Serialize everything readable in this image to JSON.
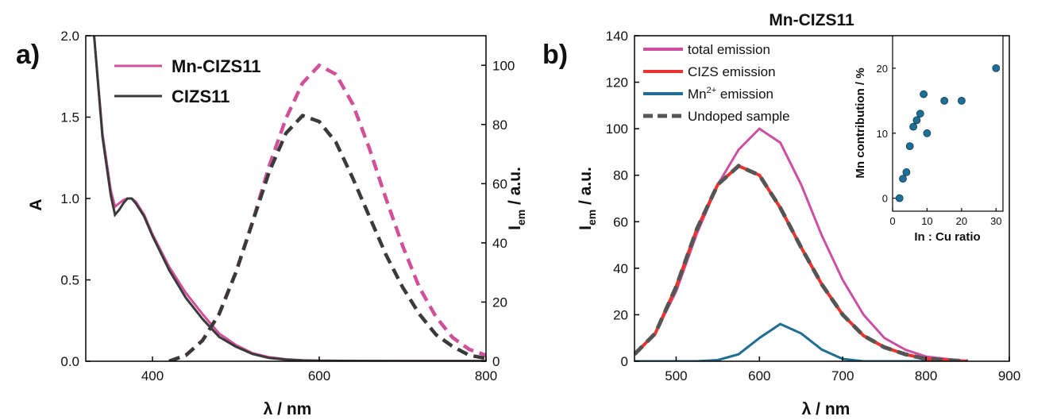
{
  "chart_data": [
    {
      "panel": "a)",
      "type": "line",
      "xlabel": "λ / nm",
      "ylabel": "A",
      "y2label_main": "I",
      "y2label_sub": "em",
      "y2label_rest": " / a.u.",
      "xlim": [
        320,
        800
      ],
      "ylim": [
        0,
        2.0
      ],
      "y2lim": [
        0,
        110
      ],
      "x_ticks": [
        400,
        600,
        800
      ],
      "y_ticks": [
        "0.0",
        "0.5",
        "1.0",
        "1.5",
        "2.0"
      ],
      "y2_ticks": [
        0,
        20,
        40,
        60,
        80,
        100
      ],
      "legend": [
        {
          "label": "Mn-CIZS11",
          "color": "#d0509a"
        },
        {
          "label": "CIZS11",
          "color": "#3a3a3a"
        }
      ],
      "absorption_series": [
        {
          "name": "Mn-CIZS11",
          "color": "#d0509a",
          "x": [
            330,
            340,
            350,
            355,
            360,
            365,
            370,
            375,
            380,
            390,
            400,
            420,
            440,
            460,
            480,
            500,
            520,
            540,
            560,
            580,
            600,
            650,
            700,
            750,
            800
          ],
          "y": [
            2.0,
            1.4,
            1.05,
            0.95,
            0.97,
            0.99,
            1.0,
            1.0,
            0.98,
            0.9,
            0.78,
            0.58,
            0.42,
            0.29,
            0.17,
            0.1,
            0.05,
            0.025,
            0.012,
            0.006,
            0.004,
            0.002,
            0.001,
            0.001,
            0.001
          ]
        },
        {
          "name": "CIZS11",
          "color": "#3a3a3a",
          "x": [
            330,
            340,
            350,
            355,
            360,
            365,
            370,
            375,
            380,
            390,
            400,
            420,
            440,
            460,
            480,
            500,
            520,
            540,
            560,
            580,
            600,
            650,
            700,
            750,
            800
          ],
          "y": [
            2.0,
            1.38,
            1.02,
            0.9,
            0.93,
            0.97,
            1.0,
            1.0,
            0.97,
            0.89,
            0.77,
            0.56,
            0.39,
            0.26,
            0.15,
            0.09,
            0.045,
            0.02,
            0.01,
            0.005,
            0.003,
            0.002,
            0.001,
            0.001,
            0.001
          ]
        }
      ],
      "emission_series": [
        {
          "name": "Mn-CIZS11",
          "color": "#d0509a",
          "x": [
            420,
            440,
            460,
            480,
            500,
            520,
            540,
            560,
            580,
            600,
            620,
            640,
            660,
            680,
            700,
            720,
            740,
            760,
            780,
            800
          ],
          "y": [
            0,
            2,
            7,
            16,
            30,
            47,
            66,
            82,
            94,
            100,
            97,
            87,
            72,
            55,
            39,
            25,
            15,
            8,
            4,
            2
          ]
        },
        {
          "name": "CIZS11",
          "color": "#3a3a3a",
          "x": [
            420,
            440,
            460,
            480,
            500,
            520,
            540,
            560,
            580,
            600,
            620,
            640,
            660,
            680,
            700,
            720,
            740,
            760,
            780,
            800
          ],
          "y": [
            0,
            2,
            7,
            16,
            30,
            47,
            64,
            77,
            83,
            81,
            74,
            62,
            49,
            36,
            25,
            16,
            9,
            5,
            2,
            1
          ]
        }
      ]
    },
    {
      "panel": "b)",
      "type": "line",
      "title": "Mn-CIZS11",
      "xlabel": "λ / nm",
      "ylabel_main": "I",
      "ylabel_sub": "em",
      "ylabel_rest": " / a.u.",
      "xlim": [
        450,
        900
      ],
      "ylim": [
        0,
        140
      ],
      "x_ticks": [
        500,
        600,
        700,
        800,
        900
      ],
      "y_ticks": [
        0,
        20,
        40,
        60,
        80,
        100,
        120,
        140
      ],
      "legend": [
        {
          "label": "total emission",
          "color": "#cc4fa2",
          "dash": false
        },
        {
          "label": "CIZS emission",
          "color": "#e8352f",
          "dash": false
        },
        {
          "label_main": "Mn",
          "label_sup": "2+",
          "label_rest": " emission",
          "color": "#1f6f94",
          "dash": false
        },
        {
          "label": "Undoped sample",
          "color": "#555555",
          "dash": true
        }
      ],
      "series": [
        {
          "name": "total emission",
          "color": "#cc4fa2",
          "dash": false,
          "x": [
            450,
            475,
            500,
            525,
            550,
            575,
            600,
            625,
            650,
            675,
            700,
            725,
            750,
            775,
            800,
            825,
            850
          ],
          "y": [
            3,
            12,
            30,
            55,
            76,
            91,
            100,
            94,
            76,
            54,
            35,
            20,
            10,
            5,
            2,
            1,
            0
          ]
        },
        {
          "name": "CIZS emission",
          "color": "#e8352f",
          "dash": false,
          "x": [
            450,
            475,
            500,
            525,
            550,
            575,
            600,
            625,
            650,
            675,
            700,
            725,
            750,
            775,
            800,
            825,
            850
          ],
          "y": [
            3,
            12,
            32,
            57,
            76,
            84,
            80,
            66,
            49,
            33,
            20,
            11,
            6,
            3,
            1,
            0.5,
            0
          ]
        },
        {
          "name": "Mn2+ emission",
          "color": "#1f6f94",
          "dash": false,
          "x": [
            450,
            525,
            550,
            575,
            600,
            625,
            650,
            675,
            700,
            725,
            750,
            800,
            850
          ],
          "y": [
            0,
            0,
            0.5,
            3,
            10,
            16,
            12,
            5,
            1,
            0,
            0,
            0,
            0
          ]
        },
        {
          "name": "Undoped sample",
          "color": "#555555",
          "dash": true,
          "x": [
            450,
            475,
            500,
            525,
            550,
            575,
            600,
            625,
            650,
            675,
            700,
            725,
            750,
            775,
            800,
            825,
            850
          ],
          "y": [
            3,
            12,
            32,
            57,
            76,
            84,
            80,
            66,
            49,
            33,
            20,
            11,
            6,
            3,
            1,
            0.5,
            0
          ]
        }
      ],
      "inset": {
        "type": "scatter",
        "xlabel": "In : Cu ratio",
        "ylabel": "Mn contribution / %",
        "xlim": [
          0,
          32
        ],
        "ylim": [
          -2,
          25
        ],
        "x_ticks": [
          0,
          10,
          20,
          30
        ],
        "y_ticks": [
          0,
          10,
          20
        ],
        "color": "#1f6f94",
        "x": [
          2,
          3,
          4,
          5,
          6,
          7,
          8,
          9,
          10,
          15,
          20,
          30
        ],
        "y": [
          0,
          3,
          4,
          8,
          11,
          12,
          13,
          16,
          10,
          15,
          15,
          20
        ]
      }
    }
  ]
}
